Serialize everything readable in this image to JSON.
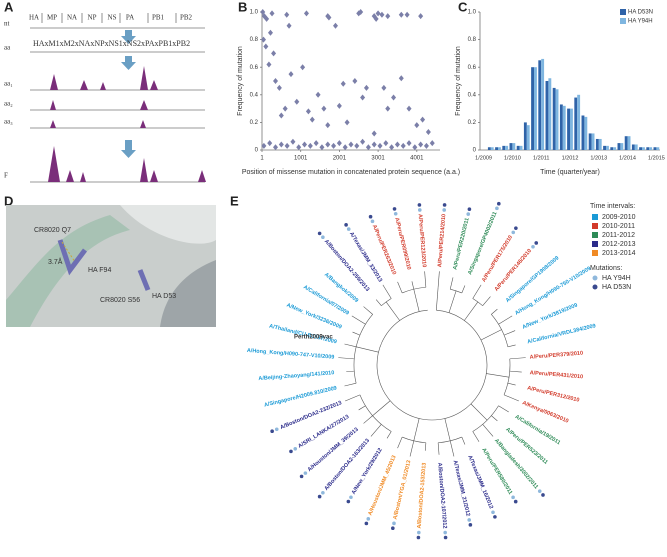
{
  "panel_labels": [
    "A",
    "B",
    "C",
    "D",
    "E"
  ],
  "panel_a": {
    "genes": [
      "HA",
      "MP",
      "NA",
      "NP",
      "NS",
      "PA",
      "PB1",
      "PB2"
    ],
    "rows": [
      "nt",
      "aa",
      "aa₁",
      "aa₂",
      "aa₃",
      "F"
    ],
    "concatenated": "HAxM1xM2xNAxNPxNS1xNS2xPAxPB1xPB2"
  },
  "chart_data": [
    {
      "type": "scatter",
      "x_label": "Position of missense mutation in concatenated protein sequence (a.a.)",
      "y_label": "Frequency of mutation",
      "color": "#7b7fa8",
      "xlim": [
        1,
        4600
      ],
      "xticks": [
        1,
        1001,
        2001,
        3001,
        4001
      ],
      "ylim": [
        0,
        1
      ],
      "yticks": [
        0,
        0.2,
        0.4,
        0.6,
        0.8,
        {
          "value": 1,
          "label": "1.0"
        }
      ],
      "x": [
        20,
        60,
        120,
        260,
        640,
        700,
        1150,
        1700,
        1730,
        1900,
        2500,
        2550,
        2900,
        2950,
        3000,
        3100,
        3250,
        3600,
        3750,
        4100,
        40,
        100,
        180,
        220,
        300,
        350,
        450,
        500,
        600,
        750,
        900,
        1050,
        1200,
        1300,
        1450,
        1600,
        1700,
        2000,
        2100,
        2200,
        2400,
        2600,
        2700,
        2900,
        3150,
        3250,
        3400,
        3600,
        3800,
        4000,
        4150,
        4300,
        50,
        200,
        350,
        500,
        650,
        800,
        950,
        1100,
        1250,
        1400,
        1550,
        1700,
        1850,
        2000,
        2150,
        2300,
        2450,
        2600,
        2750,
        2900,
        3050,
        3200,
        3350,
        3500,
        3650,
        3800,
        3950,
        4100,
        4250,
        4400
      ],
      "values": [
        1.0,
        0.97,
        0.95,
        0.99,
        0.98,
        0.9,
        0.99,
        0.97,
        0.96,
        0.9,
        0.99,
        1.0,
        0.97,
        0.95,
        0.99,
        0.98,
        0.97,
        0.98,
        0.98,
        0.97,
        0.8,
        0.75,
        0.62,
        0.85,
        0.7,
        0.5,
        0.45,
        0.25,
        0.3,
        0.55,
        0.35,
        0.6,
        0.28,
        0.22,
        0.4,
        0.3,
        0.18,
        0.32,
        0.48,
        0.2,
        0.5,
        0.38,
        0.45,
        0.12,
        0.45,
        0.3,
        0.38,
        0.52,
        0.3,
        0.18,
        0.22,
        0.13,
        0.03,
        0.05,
        0.02,
        0.04,
        0.03,
        0.06,
        0.02,
        0.04,
        0.03,
        0.05,
        0.02,
        0.04,
        0.03,
        0.05,
        0.02,
        0.04,
        0.03,
        0.06,
        0.02,
        0.04,
        0.03,
        0.05,
        0.02,
        0.04,
        0.03,
        0.05,
        0.02,
        0.04,
        0.03,
        0.05
      ]
    },
    {
      "type": "bar",
      "x_label": "Time (quarter/year)",
      "y_label": "Frequency of mutation",
      "legend": "top-right",
      "categories": [
        "1/2009",
        null,
        null,
        null,
        "1/2010",
        null,
        null,
        null,
        "1/2011",
        null,
        null,
        null,
        "1/2012",
        null,
        null,
        null,
        "1/2013",
        null,
        null,
        null,
        "1/2014",
        null,
        null,
        null,
        "1/2015"
      ],
      "ylim": [
        0,
        1
      ],
      "yticks": [
        0,
        0.2,
        0.4,
        0.6,
        0.8,
        {
          "value": 1,
          "label": "1.0"
        }
      ],
      "series": [
        {
          "name": "HA D53N",
          "color": "#2f63a8",
          "values": [
            0,
            0.02,
            0.02,
            0.03,
            0.05,
            0.03,
            0.2,
            0.6,
            0.65,
            0.5,
            0.45,
            0.33,
            0.3,
            0.38,
            0.25,
            0.12,
            0.08,
            0.03,
            0.02,
            0.05,
            0.1,
            0.04,
            0.02,
            0.02,
            0.02
          ]
        },
        {
          "name": "HA Y94H",
          "color": "#7fb6e0",
          "values": [
            0,
            0.02,
            0.02,
            0.03,
            0.05,
            0.03,
            0.18,
            0.6,
            0.66,
            0.52,
            0.44,
            0.32,
            0.3,
            0.4,
            0.24,
            0.12,
            0.08,
            0.03,
            0.02,
            0.05,
            0.1,
            0.04,
            0.02,
            0.02,
            0.02
          ]
        }
      ]
    }
  ],
  "panel_d": {
    "labels": [
      "CR8020 Q7",
      "3.7Å",
      "HA F94",
      "CR8020 S56",
      "HA D53"
    ]
  },
  "panel_e": {
    "center_label": "Perth2009vac",
    "periods_title": "Time intervals:",
    "periods": [
      {
        "name": "2009-2010",
        "color": "#1a9ad6"
      },
      {
        "name": "2010-2011",
        "color": "#d23a2a"
      },
      {
        "name": "2011-2012",
        "color": "#2e8b57"
      },
      {
        "name": "2012-2013",
        "color": "#2a2a8a"
      },
      {
        "name": "2013-2014",
        "color": "#f08a24"
      }
    ],
    "mutations_title": "Mutations:",
    "mutations": [
      {
        "name": "HA Y94H",
        "color": "#8fb8dc"
      },
      {
        "name": "HA D53N",
        "color": "#3a4a8f"
      }
    ],
    "tips": [
      {
        "label": "A/Peru/PER214/2010",
        "period": 1,
        "mutations": [
          0,
          1
        ]
      },
      {
        "label": "A/Peru/PER220/2011",
        "period": 2,
        "mutations": [
          0,
          1
        ]
      },
      {
        "label": "A/Singapore/GP4002/2011",
        "period": 2,
        "mutations": [
          0,
          1
        ]
      },
      {
        "label": "A/Peru/PER175/2010",
        "period": 1,
        "mutations": [
          0,
          1
        ]
      },
      {
        "label": "A/Peru/PER146/2010",
        "period": 1,
        "mutations": [
          0,
          1
        ]
      },
      {
        "label": "A/Singapore/GP1908/2009",
        "period": 0,
        "mutations": []
      },
      {
        "label": "A/Hong_Kong/H090-750-V10/2009",
        "period": 0,
        "mutations": []
      },
      {
        "label": "A/New_York/3819/2009",
        "period": 0,
        "mutations": []
      },
      {
        "label": "A/California/VRDL384/2009",
        "period": 0,
        "mutations": []
      },
      {
        "label": "A/Peru/PER379/2010",
        "period": 1,
        "mutations": []
      },
      {
        "label": "A/Peru/PER431/2010",
        "period": 1,
        "mutations": []
      },
      {
        "label": "A/Peru/PER312/2010",
        "period": 1,
        "mutations": []
      },
      {
        "label": "A/Kenya/0063/2010",
        "period": 1,
        "mutations": []
      },
      {
        "label": "A/California/19/2011",
        "period": 2,
        "mutations": []
      },
      {
        "label": "A/Peru/PER523/2011",
        "period": 2,
        "mutations": []
      },
      {
        "label": "A/Bangladesh/3002/2011",
        "period": 2,
        "mutations": [
          0,
          1
        ]
      },
      {
        "label": "A/Peru/PER580/2011",
        "period": 2,
        "mutations": [
          0,
          1
        ]
      },
      {
        "label": "A/Texas/JMM_16/2012",
        "period": 3,
        "mutations": [
          0,
          1
        ]
      },
      {
        "label": "A/Texas/JMM_21/2012",
        "period": 3,
        "mutations": [
          0,
          1
        ]
      },
      {
        "label": "A/Boston/DOA2-107/2012",
        "period": 3,
        "mutations": [
          0,
          1
        ]
      },
      {
        "label": "A/Boston/DOA2-153/2013",
        "period": 4,
        "mutations": [
          0,
          1
        ]
      },
      {
        "label": "A/Boston/YGA_01/2013",
        "period": 4,
        "mutations": [
          0,
          1
        ]
      },
      {
        "label": "A/Houston/JMM_45/2013",
        "period": 4,
        "mutations": [
          0,
          1
        ]
      },
      {
        "label": "A/New_York/29/2012",
        "period": 3,
        "mutations": [
          0,
          1
        ]
      },
      {
        "label": "A/Boston/DOA2-163/2013",
        "period": 3,
        "mutations": [
          0,
          1
        ]
      },
      {
        "label": "A/Houston/JMM_39/2013",
        "period": 3,
        "mutations": [
          0,
          1
        ]
      },
      {
        "label": "A/SRI_LANKA/27/2013",
        "period": 3,
        "mutations": [
          0,
          1
        ]
      },
      {
        "label": "A/Boston/DOA2-232/2013",
        "period": 3,
        "mutations": [
          0,
          1
        ]
      },
      {
        "label": "A/Singapore/H2009.810/2009",
        "period": 0,
        "mutations": []
      },
      {
        "label": "A/Beijing-Zhaoyang/141/2010",
        "period": 0,
        "mutations": []
      },
      {
        "label": "A/Hong_Kong/H090-747-V10/2009",
        "period": 0,
        "mutations": []
      },
      {
        "label": "A/Thailand/CU-B1537/2009",
        "period": 0,
        "mutations": []
      },
      {
        "label": "A/New_York/3236/2009",
        "period": 0,
        "mutations": []
      },
      {
        "label": "A/California/07/2009",
        "period": 0,
        "mutations": []
      },
      {
        "label": "A/Bangkok/2009",
        "period": 0,
        "mutations": []
      },
      {
        "label": "A/Boston/DOA2-255/2013",
        "period": 3,
        "mutations": [
          0,
          1
        ]
      },
      {
        "label": "A/Texas/JMM_33/2013",
        "period": 3,
        "mutations": [
          0,
          1
        ]
      },
      {
        "label": "A/Peru/PER263/2010",
        "period": 1,
        "mutations": [
          0,
          1
        ]
      },
      {
        "label": "A/Peru/PER099/2010",
        "period": 1,
        "mutations": [
          0,
          1
        ]
      },
      {
        "label": "A/Peru/PER123/2010",
        "period": 1,
        "mutations": [
          0,
          1
        ]
      }
    ]
  }
}
